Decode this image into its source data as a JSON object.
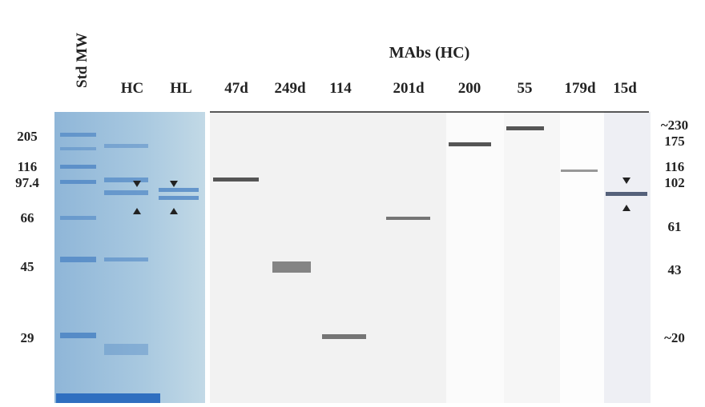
{
  "header": {
    "title": "MAbs (HC)"
  },
  "lanes": [
    "Std MW",
    "HC",
    "HL",
    "47d",
    "249d",
    "114",
    "201d",
    "200",
    "55",
    "179d",
    "15d"
  ],
  "left_markers": [
    "205",
    "116",
    "97.4",
    "66",
    "45",
    "29"
  ],
  "right_markers": [
    "~230",
    "175",
    "116",
    "102",
    "61",
    "43",
    "~20"
  ]
}
